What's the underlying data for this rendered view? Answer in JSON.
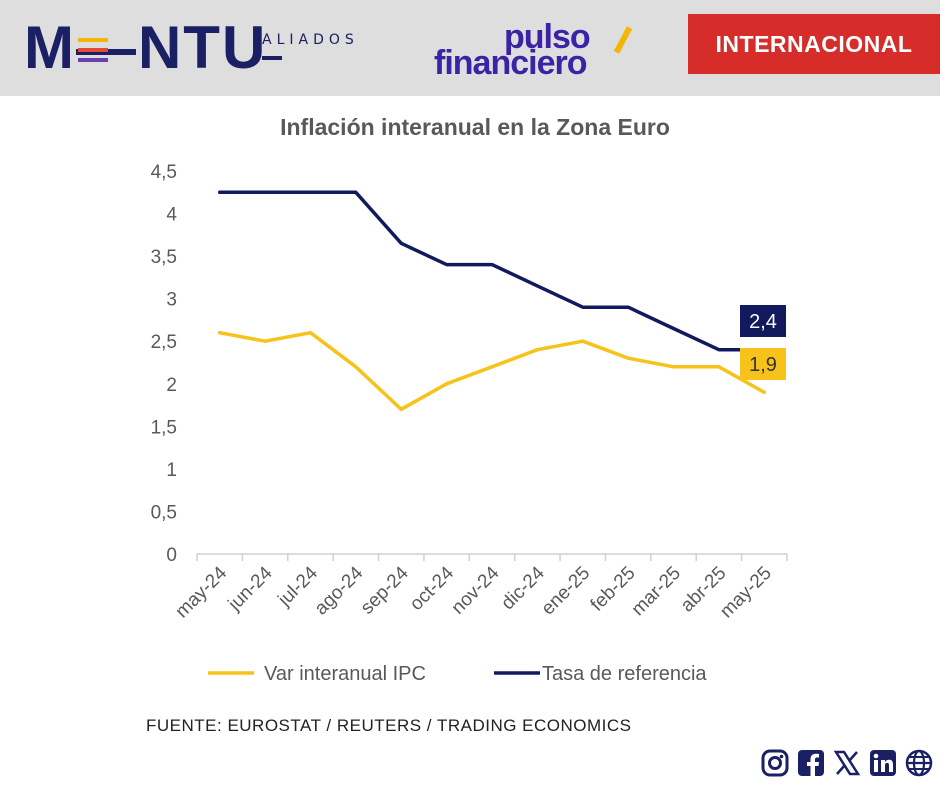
{
  "header": {
    "brand_main": "M—NTU",
    "brand_sub": "ALIADOS",
    "partner_top": "pulso",
    "partner_bottom": "financiero",
    "section_badge": "INTERNACIONAL",
    "colors": {
      "navy": "#1a2063",
      "purple": "#3b23a6",
      "red": "#d62c2a",
      "gold": "#f2b705"
    }
  },
  "chart_data": {
    "type": "line",
    "title": "Inflación interanual en la Zona Euro",
    "categories": [
      "may-24",
      "jun-24",
      "jul-24",
      "ago-24",
      "sep-24",
      "oct-24",
      "nov-24",
      "dic-24",
      "ene-25",
      "feb-25",
      "mar-25",
      "abr-25",
      "may-25"
    ],
    "series": [
      {
        "name": "Var interanual IPC",
        "color": "#f7c21a",
        "values": [
          2.6,
          2.5,
          2.6,
          2.2,
          1.7,
          2.0,
          2.2,
          2.4,
          2.5,
          2.3,
          2.2,
          2.2,
          1.9
        ],
        "end_label": "1,9"
      },
      {
        "name": "Tasa de referencia",
        "color": "#101a5c",
        "values": [
          4.25,
          4.25,
          4.25,
          4.25,
          3.65,
          3.4,
          3.4,
          3.15,
          2.9,
          2.9,
          2.65,
          2.4,
          2.4
        ],
        "end_label": "2,4"
      }
    ],
    "ylim": [
      0,
      4.5
    ],
    "yticks": [
      "0",
      "0,5",
      "1",
      "1,5",
      "2",
      "2,5",
      "3",
      "3,5",
      "4",
      "4,5"
    ],
    "xlabel": "",
    "ylabel": "",
    "legend_position": "bottom"
  },
  "footer": {
    "source": "FUENTE: EUROSTAT / REUTERS / TRADING ECONOMICS"
  },
  "socials": [
    "instagram-icon",
    "facebook-icon",
    "x-icon",
    "linkedin-icon",
    "globe-icon"
  ]
}
